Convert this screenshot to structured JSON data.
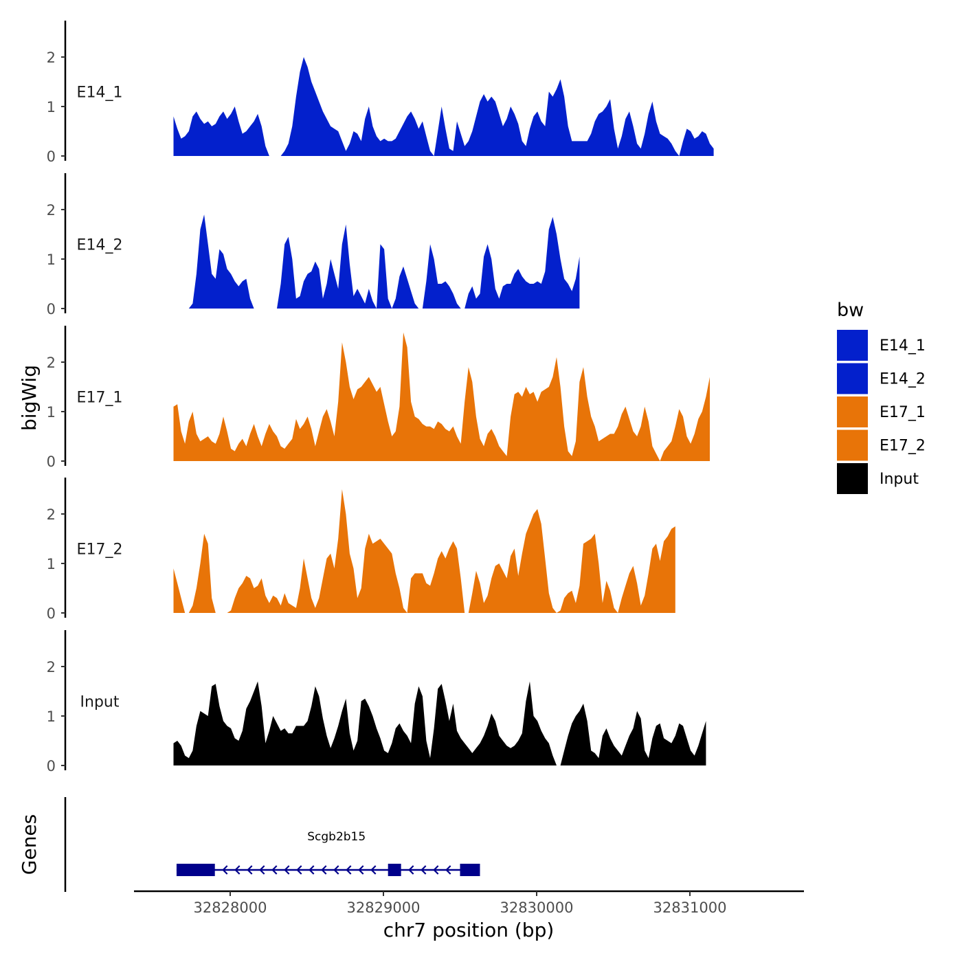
{
  "chart_data": {
    "type": "area",
    "title": "",
    "xlabel": "chr7 position (bp)",
    "ylabel": "bigWig",
    "genes_label": "Genes",
    "chromosome": "chr7",
    "xlim": [
      32827400,
      32831750
    ],
    "x_ticks": [
      32828000,
      32829000,
      32830000,
      32831000
    ],
    "y_ticks": [
      0,
      1,
      2
    ],
    "ylim": [
      0,
      2.7
    ],
    "grid": false,
    "legend": {
      "title": "bw",
      "placement": "right",
      "entries": [
        {
          "name": "E14_1",
          "color": "#0320CC"
        },
        {
          "name": "E14_2",
          "color": "#0320CC"
        },
        {
          "name": "E17_1",
          "color": "#E87408"
        },
        {
          "name": "E17_2",
          "color": "#E87408"
        },
        {
          "name": "Input",
          "color": "#000000"
        }
      ]
    },
    "x_start": 32827630,
    "x_step": 25,
    "series": [
      {
        "name": "E14_1",
        "color": "#0320CC",
        "values": [
          0.8,
          0.55,
          0.35,
          0.4,
          0.5,
          0.8,
          0.9,
          0.75,
          0.65,
          0.7,
          0.6,
          0.65,
          0.8,
          0.9,
          0.75,
          0.85,
          1.0,
          0.7,
          0.45,
          0.5,
          0.6,
          0.7,
          0.85,
          0.6,
          0.2,
          0,
          0,
          0,
          0,
          0.1,
          0.25,
          0.6,
          1.2,
          1.7,
          2.0,
          1.8,
          1.5,
          1.3,
          1.1,
          0.9,
          0.75,
          0.6,
          0.55,
          0.5,
          0.3,
          0.1,
          0.25,
          0.5,
          0.45,
          0.3,
          0.75,
          1.0,
          0.6,
          0.4,
          0.3,
          0.35,
          0.3,
          0.3,
          0.35,
          0.5,
          0.65,
          0.8,
          0.9,
          0.75,
          0.55,
          0.7,
          0.4,
          0.1,
          0,
          0.5,
          1.0,
          0.55,
          0.15,
          0.1,
          0.7,
          0.45,
          0.2,
          0.3,
          0.5,
          0.8,
          1.1,
          1.25,
          1.1,
          1.2,
          1.1,
          0.85,
          0.6,
          0.75,
          1.0,
          0.85,
          0.65,
          0.3,
          0.2,
          0.55,
          0.8,
          0.9,
          0.7,
          0.6,
          1.3,
          1.2,
          1.35,
          1.55,
          1.2,
          0.6,
          0.3,
          0.3,
          0.3,
          0.3,
          0.3,
          0.45,
          0.7,
          0.85,
          0.9,
          1.0,
          1.15,
          0.55,
          0.15,
          0.4,
          0.75,
          0.9,
          0.6,
          0.25,
          0.15,
          0.45,
          0.85,
          1.1,
          0.7,
          0.45,
          0.4,
          0.35,
          0.25,
          0.1,
          0,
          0.3,
          0.55,
          0.5,
          0.35,
          0.4,
          0.5,
          0.45,
          0.25,
          0.15
        ]
      },
      {
        "name": "E14_2",
        "color": "#0320CC",
        "values": [
          0,
          0,
          0,
          0,
          0,
          0.1,
          0.7,
          1.6,
          1.9,
          1.3,
          0.7,
          0.6,
          1.2,
          1.1,
          0.8,
          0.7,
          0.55,
          0.45,
          0.55,
          0.6,
          0.2,
          0,
          0,
          0,
          0,
          0,
          0,
          0,
          0.5,
          1.3,
          1.45,
          1.0,
          0.2,
          0.25,
          0.55,
          0.7,
          0.75,
          0.95,
          0.8,
          0.2,
          0.5,
          1.0,
          0.7,
          0.4,
          1.3,
          1.7,
          0.9,
          0.25,
          0.4,
          0.25,
          0.1,
          0.4,
          0.15,
          0,
          1.3,
          1.2,
          0.2,
          0,
          0.2,
          0.65,
          0.85,
          0.6,
          0.35,
          0.1,
          0,
          0,
          0.55,
          1.3,
          1.0,
          0.5,
          0.5,
          0.55,
          0.45,
          0.3,
          0.1,
          0,
          0,
          0.3,
          0.45,
          0.2,
          0.3,
          1.05,
          1.3,
          1.0,
          0.4,
          0.2,
          0.45,
          0.5,
          0.5,
          0.7,
          0.8,
          0.65,
          0.55,
          0.5,
          0.5,
          0.55,
          0.5,
          0.75,
          1.6,
          1.85,
          1.5,
          1.0,
          0.6,
          0.5,
          0.35,
          0.6,
          1.05
        ]
      },
      {
        "name": "E17_1",
        "color": "#E87408",
        "values": [
          1.1,
          1.15,
          0.6,
          0.35,
          0.8,
          1.0,
          0.55,
          0.4,
          0.45,
          0.5,
          0.4,
          0.35,
          0.55,
          0.9,
          0.6,
          0.25,
          0.2,
          0.35,
          0.45,
          0.3,
          0.55,
          0.75,
          0.5,
          0.3,
          0.55,
          0.75,
          0.6,
          0.5,
          0.3,
          0.25,
          0.35,
          0.45,
          0.85,
          0.65,
          0.75,
          0.9,
          0.65,
          0.3,
          0.6,
          0.9,
          1.05,
          0.8,
          0.5,
          1.2,
          2.4,
          2.0,
          1.5,
          1.25,
          1.45,
          1.5,
          1.6,
          1.7,
          1.55,
          1.4,
          1.5,
          1.15,
          0.8,
          0.5,
          0.6,
          1.1,
          2.6,
          2.3,
          1.2,
          0.9,
          0.85,
          0.75,
          0.7,
          0.7,
          0.65,
          0.8,
          0.75,
          0.65,
          0.6,
          0.7,
          0.5,
          0.35,
          1.2,
          1.9,
          1.6,
          0.9,
          0.45,
          0.3,
          0.55,
          0.65,
          0.5,
          0.3,
          0.2,
          0.1,
          0.9,
          1.35,
          1.4,
          1.3,
          1.5,
          1.35,
          1.4,
          1.2,
          1.4,
          1.45,
          1.5,
          1.7,
          2.1,
          1.5,
          0.7,
          0.2,
          0.1,
          0.4,
          1.6,
          1.9,
          1.3,
          0.9,
          0.7,
          0.4,
          0.45,
          0.5,
          0.55,
          0.55,
          0.7,
          0.95,
          1.1,
          0.85,
          0.6,
          0.5,
          0.7,
          1.1,
          0.8,
          0.3,
          0.15,
          0,
          0.2,
          0.3,
          0.4,
          0.7,
          1.05,
          0.9,
          0.5,
          0.35,
          0.55,
          0.85,
          1.0,
          1.3,
          1.7
        ]
      },
      {
        "name": "E17_2",
        "color": "#E87408",
        "values": [
          0.9,
          0.6,
          0.3,
          0,
          0,
          0.15,
          0.5,
          1.0,
          1.6,
          1.4,
          0.3,
          0,
          0,
          0,
          0,
          0.05,
          0.3,
          0.5,
          0.6,
          0.75,
          0.7,
          0.5,
          0.55,
          0.7,
          0.35,
          0.2,
          0.35,
          0.3,
          0.15,
          0.4,
          0.2,
          0.15,
          0.1,
          0.5,
          1.1,
          0.7,
          0.3,
          0.1,
          0.3,
          0.7,
          1.1,
          1.2,
          0.9,
          1.5,
          2.5,
          2.0,
          1.2,
          0.9,
          0.3,
          0.5,
          1.3,
          1.6,
          1.4,
          1.45,
          1.5,
          1.4,
          1.3,
          1.2,
          0.8,
          0.5,
          0.1,
          0,
          0.7,
          0.8,
          0.8,
          0.8,
          0.6,
          0.55,
          0.8,
          1.1,
          1.25,
          1.1,
          1.3,
          1.45,
          1.3,
          0.7,
          0,
          0,
          0.4,
          0.85,
          0.6,
          0.2,
          0.35,
          0.7,
          0.95,
          1.0,
          0.85,
          0.7,
          1.15,
          1.3,
          0.75,
          1.2,
          1.6,
          1.8,
          2.0,
          2.1,
          1.8,
          1.1,
          0.4,
          0.1,
          0,
          0.05,
          0.3,
          0.4,
          0.45,
          0.2,
          0.55,
          1.4,
          1.45,
          1.5,
          1.6,
          1.0,
          0.2,
          0.65,
          0.45,
          0.1,
          0,
          0.3,
          0.55,
          0.8,
          0.95,
          0.6,
          0.15,
          0.35,
          0.8,
          1.3,
          1.4,
          1.05,
          1.45,
          1.55,
          1.7,
          1.75
        ]
      },
      {
        "name": "Input",
        "color": "#000000",
        "values": [
          0.45,
          0.5,
          0.4,
          0.2,
          0.15,
          0.3,
          0.8,
          1.1,
          1.05,
          1.0,
          1.6,
          1.65,
          1.2,
          0.9,
          0.8,
          0.75,
          0.55,
          0.5,
          0.7,
          1.15,
          1.3,
          1.5,
          1.7,
          1.2,
          0.45,
          0.7,
          1.0,
          0.85,
          0.7,
          0.75,
          0.65,
          0.65,
          0.8,
          0.8,
          0.8,
          0.9,
          1.2,
          1.6,
          1.4,
          0.95,
          0.6,
          0.35,
          0.55,
          0.8,
          1.1,
          1.35,
          0.65,
          0.3,
          0.5,
          1.3,
          1.35,
          1.2,
          1.0,
          0.75,
          0.55,
          0.3,
          0.25,
          0.45,
          0.75,
          0.85,
          0.7,
          0.6,
          0.45,
          1.25,
          1.6,
          1.4,
          0.5,
          0.15,
          0.75,
          1.55,
          1.65,
          1.3,
          0.9,
          1.25,
          0.7,
          0.55,
          0.45,
          0.35,
          0.25,
          0.35,
          0.45,
          0.6,
          0.8,
          1.05,
          0.9,
          0.6,
          0.5,
          0.4,
          0.35,
          0.4,
          0.5,
          0.65,
          1.3,
          1.7,
          1.0,
          0.9,
          0.7,
          0.55,
          0.45,
          0.2,
          0,
          0,
          0.3,
          0.6,
          0.85,
          1.0,
          1.1,
          1.25,
          0.9,
          0.3,
          0.25,
          0.15,
          0.6,
          0.75,
          0.55,
          0.4,
          0.3,
          0.2,
          0.4,
          0.6,
          0.75,
          1.1,
          0.95,
          0.3,
          0.15,
          0.55,
          0.8,
          0.85,
          0.55,
          0.5,
          0.45,
          0.6,
          0.85,
          0.8,
          0.55,
          0.3,
          0.2,
          0.4,
          0.65,
          0.9
        ]
      }
    ],
    "gene": {
      "name": "Scgb2b15",
      "strand": "-",
      "start": 32827650,
      "end": 32829630,
      "exons": [
        [
          32827650,
          32827900
        ],
        [
          32829030,
          32829115
        ],
        [
          32829500,
          32829630
        ]
      ]
    }
  }
}
